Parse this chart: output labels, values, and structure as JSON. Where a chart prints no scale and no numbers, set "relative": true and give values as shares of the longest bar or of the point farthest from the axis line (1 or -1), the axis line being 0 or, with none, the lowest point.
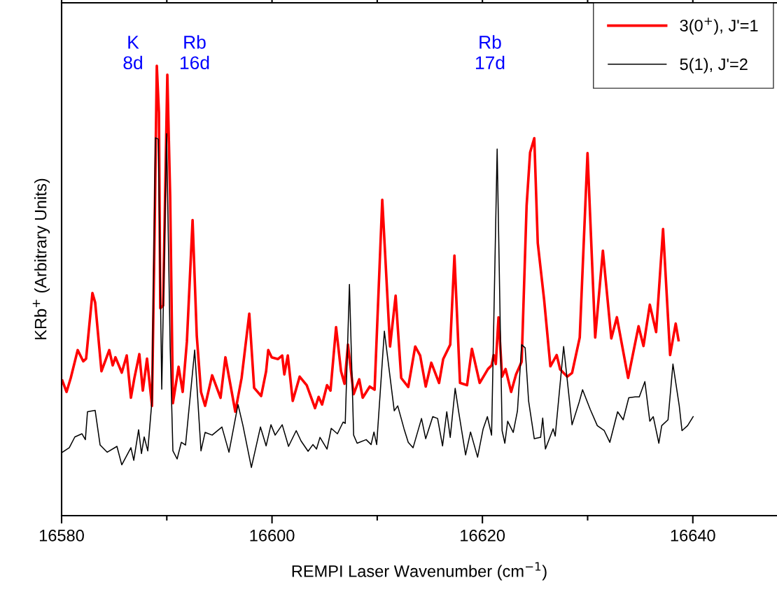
{
  "chart_data": {
    "type": "line",
    "relative": true,
    "xlabel": "REMPI Laser Wavenumber (cm$^{−1}$)",
    "ylabel": "KRb$^{+}$ (Arbitrary Units)",
    "xlim": [
      16580,
      16648
    ],
    "xticks": [
      16580,
      16600,
      16620,
      16640
    ],
    "legend": "top right",
    "annotations": [
      "K\n8d",
      "Rb\n16d",
      "Rb\n17d"
    ],
    "series": [
      {
        "name": "3(0$^{+}$), J'=1",
        "color": "#ff0000",
        "x": [
          16580.07,
          16580.47,
          16580.87,
          16581.53,
          16582.06,
          16582.33,
          16582.93,
          16583.19,
          16583.79,
          16584.53,
          16584.86,
          16585.12,
          16585.72,
          16586.19,
          16586.59,
          16586.92,
          16587.39,
          16587.72,
          16588.12,
          16588.59,
          16588.85,
          16589.05,
          16589.25,
          16589.38,
          16589.65,
          16590.05,
          16590.32,
          16590.58,
          16591.12,
          16591.51,
          16591.91,
          16592.45,
          16592.85,
          16593.25,
          16593.64,
          16594.31,
          16595.11,
          16595.57,
          16596.17,
          16596.51,
          16597.11,
          16597.84,
          16598.3,
          16598.97,
          16599.44,
          16599.64,
          16599.97,
          16600.57,
          16600.97,
          16601.17,
          16601.5,
          16601.97,
          16602.63,
          16603.3,
          16604.09,
          16604.43,
          16604.76,
          16605.23,
          16605.56,
          16606.09,
          16606.56,
          16606.89,
          16607.22,
          16607.76,
          16608.29,
          16608.62,
          16609.29,
          16609.75,
          16610.48,
          16611.22,
          16611.75,
          16612.28,
          16612.95,
          16613.61,
          16614.08,
          16614.61,
          16615.14,
          16615.88,
          16616.27,
          16616.94,
          16617.34,
          16617.87,
          16618.54,
          16619.0,
          16619.74,
          16620.53,
          16620.87,
          16621.07,
          16621.27,
          16621.53,
          16621.87,
          16622.2,
          16622.73,
          16623.2,
          16623.73,
          16624.2,
          16624.53,
          16624.93,
          16625.26,
          16625.86,
          16626.46,
          16627.06,
          16627.39,
          16628.06,
          16628.52,
          16629.25,
          16629.99,
          16630.72,
          16631.45,
          16632.25,
          16632.78,
          16633.85,
          16634.84,
          16635.31,
          16635.91,
          16636.51,
          16637.17,
          16637.84,
          16638.37,
          16638.64
        ],
        "values": [
          0.3,
          0.275,
          0.306,
          0.368,
          0.343,
          0.349,
          0.495,
          0.474,
          0.321,
          0.368,
          0.334,
          0.352,
          0.318,
          0.356,
          0.262,
          0.306,
          0.359,
          0.278,
          0.349,
          0.244,
          0.648,
          1.0,
          0.896,
          0.461,
          0.467,
          0.98,
          0.71,
          0.25,
          0.331,
          0.275,
          0.387,
          0.657,
          0.399,
          0.275,
          0.244,
          0.312,
          0.262,
          0.352,
          0.275,
          0.231,
          0.306,
          0.449,
          0.284,
          0.266,
          0.321,
          0.368,
          0.352,
          0.348,
          0.356,
          0.314,
          0.356,
          0.255,
          0.309,
          0.29,
          0.239,
          0.264,
          0.247,
          0.29,
          0.278,
          0.419,
          0.321,
          0.293,
          0.38,
          0.27,
          0.303,
          0.262,
          0.287,
          0.28,
          0.702,
          0.376,
          0.489,
          0.306,
          0.286,
          0.376,
          0.356,
          0.287,
          0.34,
          0.295,
          0.348,
          0.38,
          0.578,
          0.295,
          0.29,
          0.371,
          0.295,
          0.326,
          0.334,
          0.357,
          0.337,
          0.441,
          0.309,
          0.326,
          0.275,
          0.314,
          0.342,
          0.689,
          0.807,
          0.839,
          0.606,
          0.481,
          0.332,
          0.357,
          0.325,
          0.309,
          0.317,
          0.396,
          0.806,
          0.396,
          0.589,
          0.394,
          0.441,
          0.306,
          0.421,
          0.377,
          0.469,
          0.408,
          0.637,
          0.357,
          0.427,
          0.39
        ]
      },
      {
        "name": "5(1), J'=2",
        "color": "#000000",
        "x": [
          16580.07,
          16580.73,
          16581.26,
          16581.93,
          16582.26,
          16582.46,
          16583.19,
          16583.66,
          16584.33,
          16585.26,
          16585.72,
          16586.59,
          16586.86,
          16587.32,
          16587.59,
          16587.85,
          16588.19,
          16588.59,
          16588.92,
          16589.19,
          16589.52,
          16589.98,
          16590.32,
          16590.58,
          16590.98,
          16591.38,
          16591.78,
          16592.65,
          16593.25,
          16593.64,
          16594.31,
          16595.24,
          16595.91,
          16596.77,
          16597.24,
          16598.04,
          16598.9,
          16599.44,
          16599.9,
          16600.3,
          16600.97,
          16601.57,
          16602.3,
          16602.76,
          16603.43,
          16603.89,
          16604.23,
          16604.56,
          16605.23,
          16605.63,
          16606.22,
          16606.76,
          16606.96,
          16607.36,
          16607.76,
          16608.09,
          16608.95,
          16609.42,
          16609.69,
          16609.95,
          16610.68,
          16611.62,
          16611.95,
          16612.55,
          16612.95,
          16613.41,
          16614.21,
          16614.61,
          16615.28,
          16615.74,
          16616.21,
          16616.61,
          16616.94,
          16617.41,
          16617.74,
          16618.4,
          16618.87,
          16619.54,
          16620.07,
          16620.47,
          16620.87,
          16621.4,
          16621.87,
          16622.13,
          16622.4,
          16622.93,
          16623.33,
          16623.73,
          16624.06,
          16624.39,
          16624.93,
          16625.53,
          16625.73,
          16625.99,
          16626.72,
          16626.92,
          16627.72,
          16628.52,
          16629.19,
          16629.52,
          16630.25,
          16630.92,
          16631.58,
          16632.11,
          16632.85,
          16633.38,
          16633.91,
          16634.51,
          16634.91,
          16635.44,
          16635.91,
          16636.24,
          16636.77,
          16637.04,
          16637.64,
          16638.11,
          16638.71,
          16638.97,
          16639.5,
          16640.03
        ],
        "values": [
          0.141,
          0.151,
          0.175,
          0.182,
          0.169,
          0.231,
          0.234,
          0.157,
          0.141,
          0.154,
          0.113,
          0.151,
          0.123,
          0.191,
          0.138,
          0.175,
          0.144,
          0.256,
          0.84,
          0.837,
          0.281,
          0.849,
          0.374,
          0.144,
          0.126,
          0.163,
          0.157,
          0.368,
          0.144,
          0.185,
          0.179,
          0.197,
          0.141,
          0.247,
          0.2,
          0.107,
          0.197,
          0.155,
          0.202,
          0.179,
          0.202,
          0.154,
          0.189,
          0.166,
          0.143,
          0.158,
          0.148,
          0.174,
          0.148,
          0.194,
          0.182,
          0.208,
          0.205,
          0.514,
          0.179,
          0.161,
          0.169,
          0.158,
          0.186,
          0.158,
          0.41,
          0.233,
          0.244,
          0.193,
          0.163,
          0.151,
          0.216,
          0.171,
          0.22,
          0.216,
          0.155,
          0.231,
          0.174,
          0.283,
          0.231,
          0.135,
          0.186,
          0.13,
          0.193,
          0.22,
          0.179,
          0.815,
          0.189,
          0.161,
          0.21,
          0.185,
          0.233,
          0.38,
          0.373,
          0.255,
          0.171,
          0.174,
          0.217,
          0.148,
          0.193,
          0.177,
          0.376,
          0.202,
          0.252,
          0.28,
          0.236,
          0.2,
          0.189,
          0.163,
          0.231,
          0.213,
          0.262,
          0.264,
          0.264,
          0.298,
          0.21,
          0.22,
          0.161,
          0.2,
          0.213,
          0.337,
          0.244,
          0.189,
          0.2,
          0.22
        ]
      }
    ]
  }
}
